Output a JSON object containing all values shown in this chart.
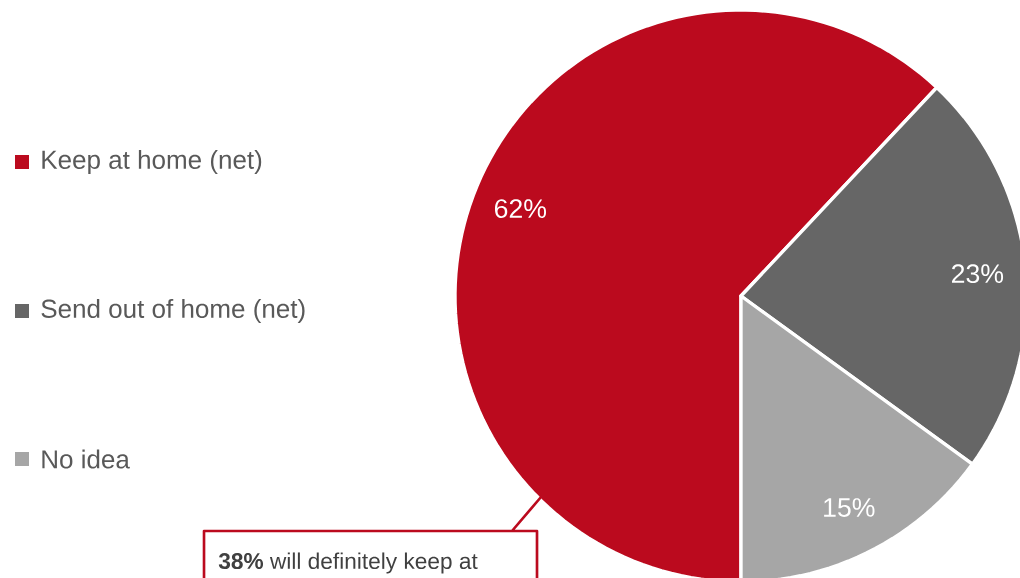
{
  "chart_data": {
    "type": "pie",
    "categories": [
      "Keep at home (net)",
      "Send out of home (net)",
      "No idea"
    ],
    "values": [
      62,
      23,
      15
    ],
    "colors": [
      "#bb0a1e",
      "#666666",
      "#a6a6a6"
    ],
    "value_labels": [
      "62%",
      "23%",
      "15%"
    ],
    "legend": "left",
    "annotations": [
      "**38%** will definitely keep at"
    ]
  }
}
